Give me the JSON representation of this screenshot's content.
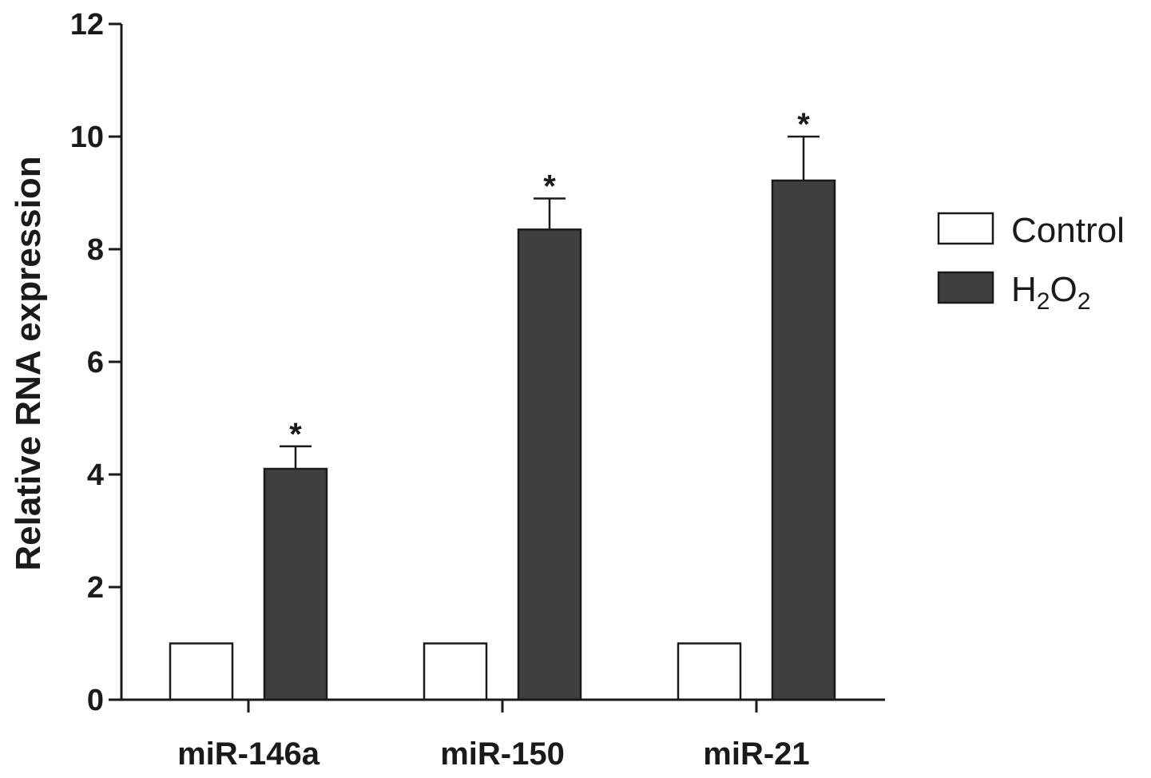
{
  "chart_data": {
    "type": "bar",
    "ylabel": "Relative RNA expression",
    "xlabel": "",
    "ylim": [
      0,
      12
    ],
    "yticks": [
      "0",
      "2",
      "4",
      "6",
      "8",
      "10",
      "12"
    ],
    "categories": [
      "miR-146a",
      "miR-150",
      "miR-21"
    ],
    "series": [
      {
        "name": "Control",
        "values": [
          1.0,
          1.0,
          1.0
        ],
        "errors": [
          0,
          0,
          0
        ],
        "color": "#ffffff"
      },
      {
        "name": "H2O2",
        "values": [
          4.1,
          8.35,
          9.22
        ],
        "errors": [
          0.4,
          0.55,
          0.78
        ],
        "color": "#3f3f3f"
      }
    ],
    "annotations": [
      "*",
      "*",
      "*"
    ],
    "legend": {
      "position": "right",
      "items": [
        {
          "label": "Control",
          "sub": [],
          "color": "#ffffff"
        },
        {
          "label": "H",
          "sub": [
            "2",
            "O",
            "2"
          ],
          "color": "#3f3f3f"
        }
      ]
    },
    "grid": false
  }
}
